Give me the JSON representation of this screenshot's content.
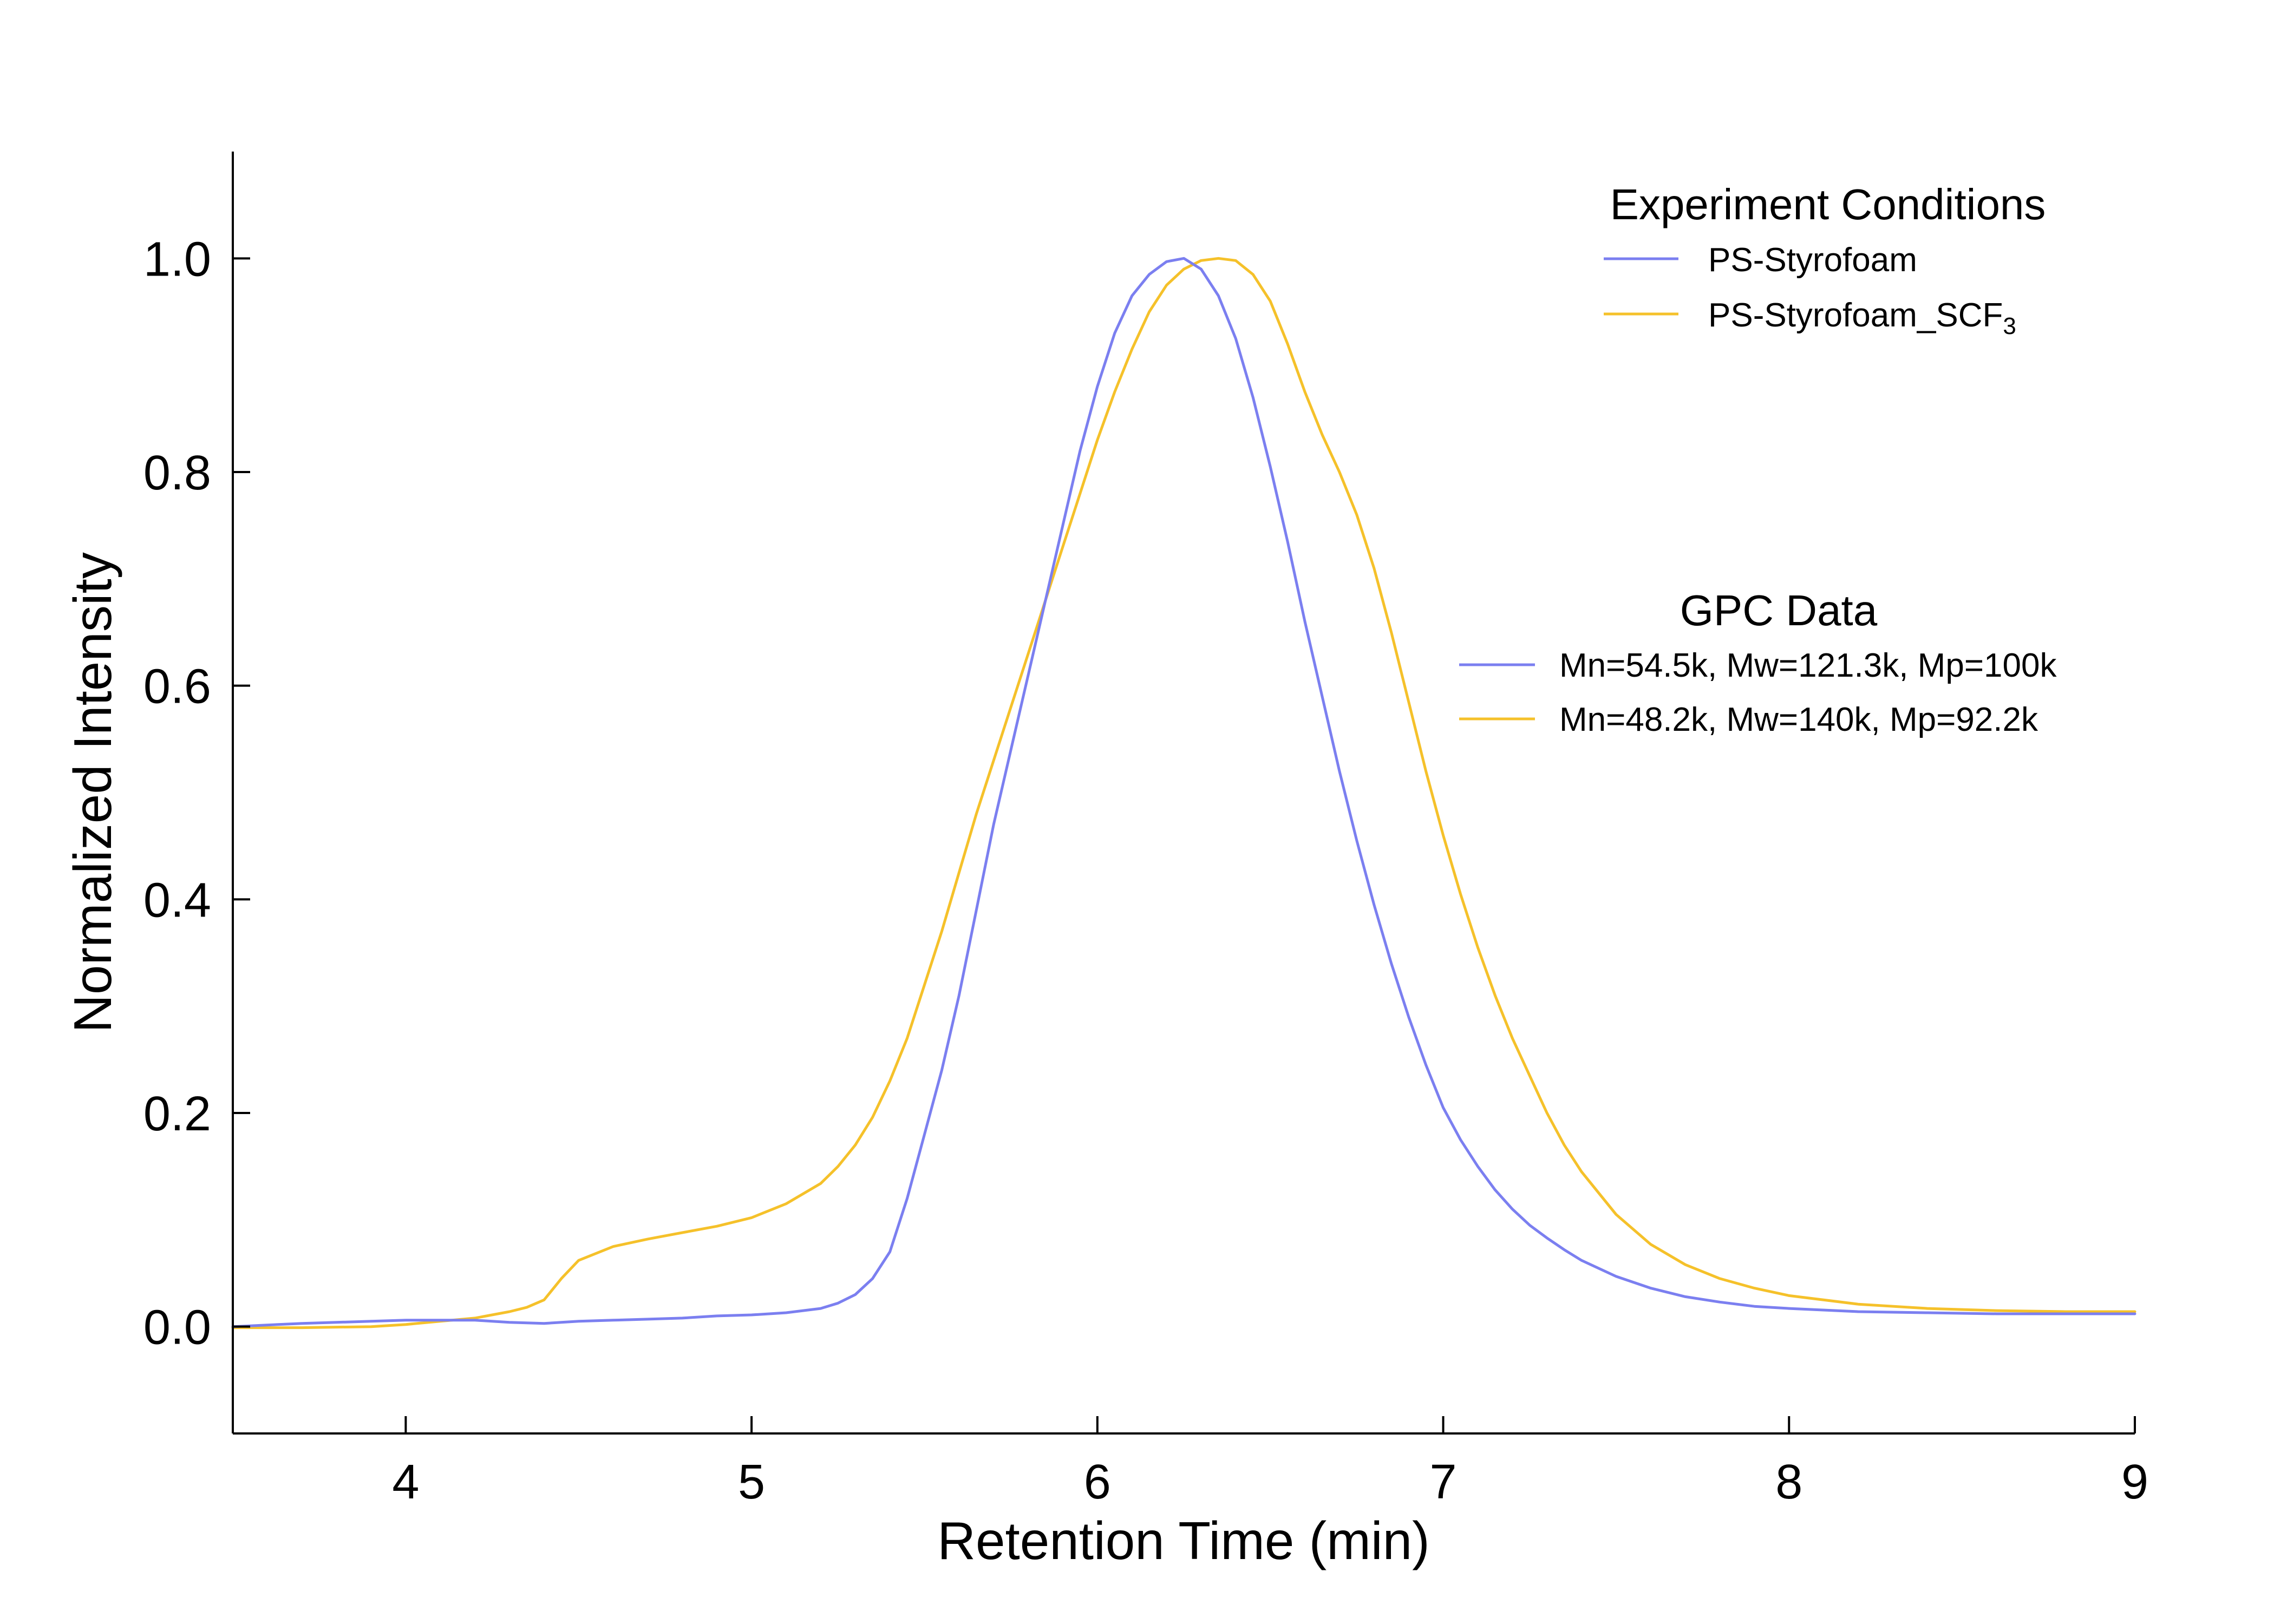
{
  "chart_data": {
    "type": "line",
    "title": "",
    "xlabel": "Retention Time (min)",
    "ylabel": "Normalized Intensity",
    "xlim": [
      3.5,
      9.0
    ],
    "ylim": [
      -0.1,
      1.1
    ],
    "xticks": [
      "4",
      "5",
      "6",
      "7",
      "8",
      "9"
    ],
    "xtick_values": [
      4,
      5,
      6,
      7,
      8,
      9
    ],
    "yticks": [
      "0.0",
      "0.2",
      "0.4",
      "0.6",
      "0.8",
      "1.0"
    ],
    "ytick_values": [
      0.0,
      0.2,
      0.4,
      0.6,
      0.8,
      1.0
    ],
    "grid": false,
    "legends": [
      {
        "title": "Experiment Conditions",
        "placement": "top-right",
        "entries": [
          {
            "label": "PS-Styrofoam",
            "color": "#7b7ff0"
          },
          {
            "label": "PS-Styrofoam_SCF",
            "subscript": "3",
            "color": "#f5c12a"
          }
        ]
      },
      {
        "title": "GPC Data",
        "placement": "center-right",
        "entries": [
          {
            "label": "Mn=54.5k, Mw=121.3k, Mp=100k",
            "color": "#7b7ff0"
          },
          {
            "label": "Mn=48.2k, Mw=140k, Mp=92.2k",
            "color": "#f5c12a"
          }
        ]
      }
    ],
    "series": [
      {
        "name": "PS-Styrofoam",
        "color": "#7b7ff0",
        "x": [
          3.5,
          3.7,
          3.9,
          4.0,
          4.1,
          4.2,
          4.3,
          4.4,
          4.5,
          4.6,
          4.7,
          4.8,
          4.9,
          5.0,
          5.1,
          5.2,
          5.25,
          5.3,
          5.35,
          5.4,
          5.45,
          5.5,
          5.55,
          5.6,
          5.65,
          5.7,
          5.75,
          5.8,
          5.85,
          5.9,
          5.95,
          6.0,
          6.05,
          6.1,
          6.15,
          6.2,
          6.25,
          6.3,
          6.35,
          6.4,
          6.45,
          6.5,
          6.55,
          6.6,
          6.65,
          6.7,
          6.75,
          6.8,
          6.85,
          6.9,
          6.95,
          7.0,
          7.05,
          7.1,
          7.15,
          7.2,
          7.25,
          7.3,
          7.35,
          7.4,
          7.5,
          7.6,
          7.7,
          7.8,
          7.9,
          8.0,
          8.2,
          8.4,
          8.6,
          8.8,
          9.0
        ],
        "y": [
          0.0,
          0.003,
          0.005,
          0.006,
          0.006,
          0.006,
          0.004,
          0.003,
          0.005,
          0.006,
          0.007,
          0.008,
          0.01,
          0.011,
          0.013,
          0.017,
          0.022,
          0.03,
          0.045,
          0.07,
          0.12,
          0.18,
          0.24,
          0.31,
          0.39,
          0.47,
          0.54,
          0.61,
          0.68,
          0.75,
          0.82,
          0.88,
          0.93,
          0.965,
          0.985,
          0.997,
          1.0,
          0.99,
          0.965,
          0.925,
          0.87,
          0.805,
          0.735,
          0.66,
          0.59,
          0.52,
          0.455,
          0.395,
          0.34,
          0.29,
          0.245,
          0.205,
          0.175,
          0.15,
          0.128,
          0.11,
          0.095,
          0.083,
          0.072,
          0.062,
          0.047,
          0.036,
          0.028,
          0.023,
          0.019,
          0.017,
          0.014,
          0.013,
          0.012,
          0.012,
          0.012
        ]
      },
      {
        "name": "PS-Styrofoam_SCF3",
        "color": "#f5c12a",
        "x": [
          3.5,
          3.7,
          3.9,
          4.0,
          4.1,
          4.2,
          4.3,
          4.35,
          4.4,
          4.45,
          4.5,
          4.6,
          4.7,
          4.8,
          4.9,
          5.0,
          5.1,
          5.2,
          5.25,
          5.3,
          5.35,
          5.4,
          5.45,
          5.5,
          5.55,
          5.6,
          5.65,
          5.7,
          5.75,
          5.8,
          5.85,
          5.9,
          5.95,
          6.0,
          6.05,
          6.1,
          6.15,
          6.2,
          6.25,
          6.3,
          6.35,
          6.4,
          6.45,
          6.5,
          6.55,
          6.6,
          6.65,
          6.7,
          6.75,
          6.8,
          6.85,
          6.9,
          6.95,
          7.0,
          7.05,
          7.1,
          7.15,
          7.2,
          7.25,
          7.3,
          7.35,
          7.4,
          7.5,
          7.6,
          7.7,
          7.8,
          7.9,
          8.0,
          8.2,
          8.4,
          8.6,
          8.8,
          9.0
        ],
        "y": [
          -0.001,
          -0.001,
          0.0,
          0.002,
          0.005,
          0.008,
          0.014,
          0.018,
          0.025,
          0.045,
          0.062,
          0.075,
          0.082,
          0.088,
          0.094,
          0.102,
          0.115,
          0.134,
          0.15,
          0.17,
          0.196,
          0.23,
          0.27,
          0.32,
          0.37,
          0.425,
          0.48,
          0.53,
          0.58,
          0.63,
          0.68,
          0.73,
          0.78,
          0.83,
          0.875,
          0.915,
          0.95,
          0.975,
          0.99,
          0.998,
          1.0,
          0.998,
          0.985,
          0.96,
          0.92,
          0.875,
          0.835,
          0.8,
          0.76,
          0.71,
          0.65,
          0.585,
          0.52,
          0.46,
          0.405,
          0.355,
          0.31,
          0.27,
          0.235,
          0.2,
          0.17,
          0.145,
          0.105,
          0.077,
          0.058,
          0.045,
          0.036,
          0.029,
          0.021,
          0.017,
          0.015,
          0.014,
          0.014
        ]
      }
    ]
  }
}
